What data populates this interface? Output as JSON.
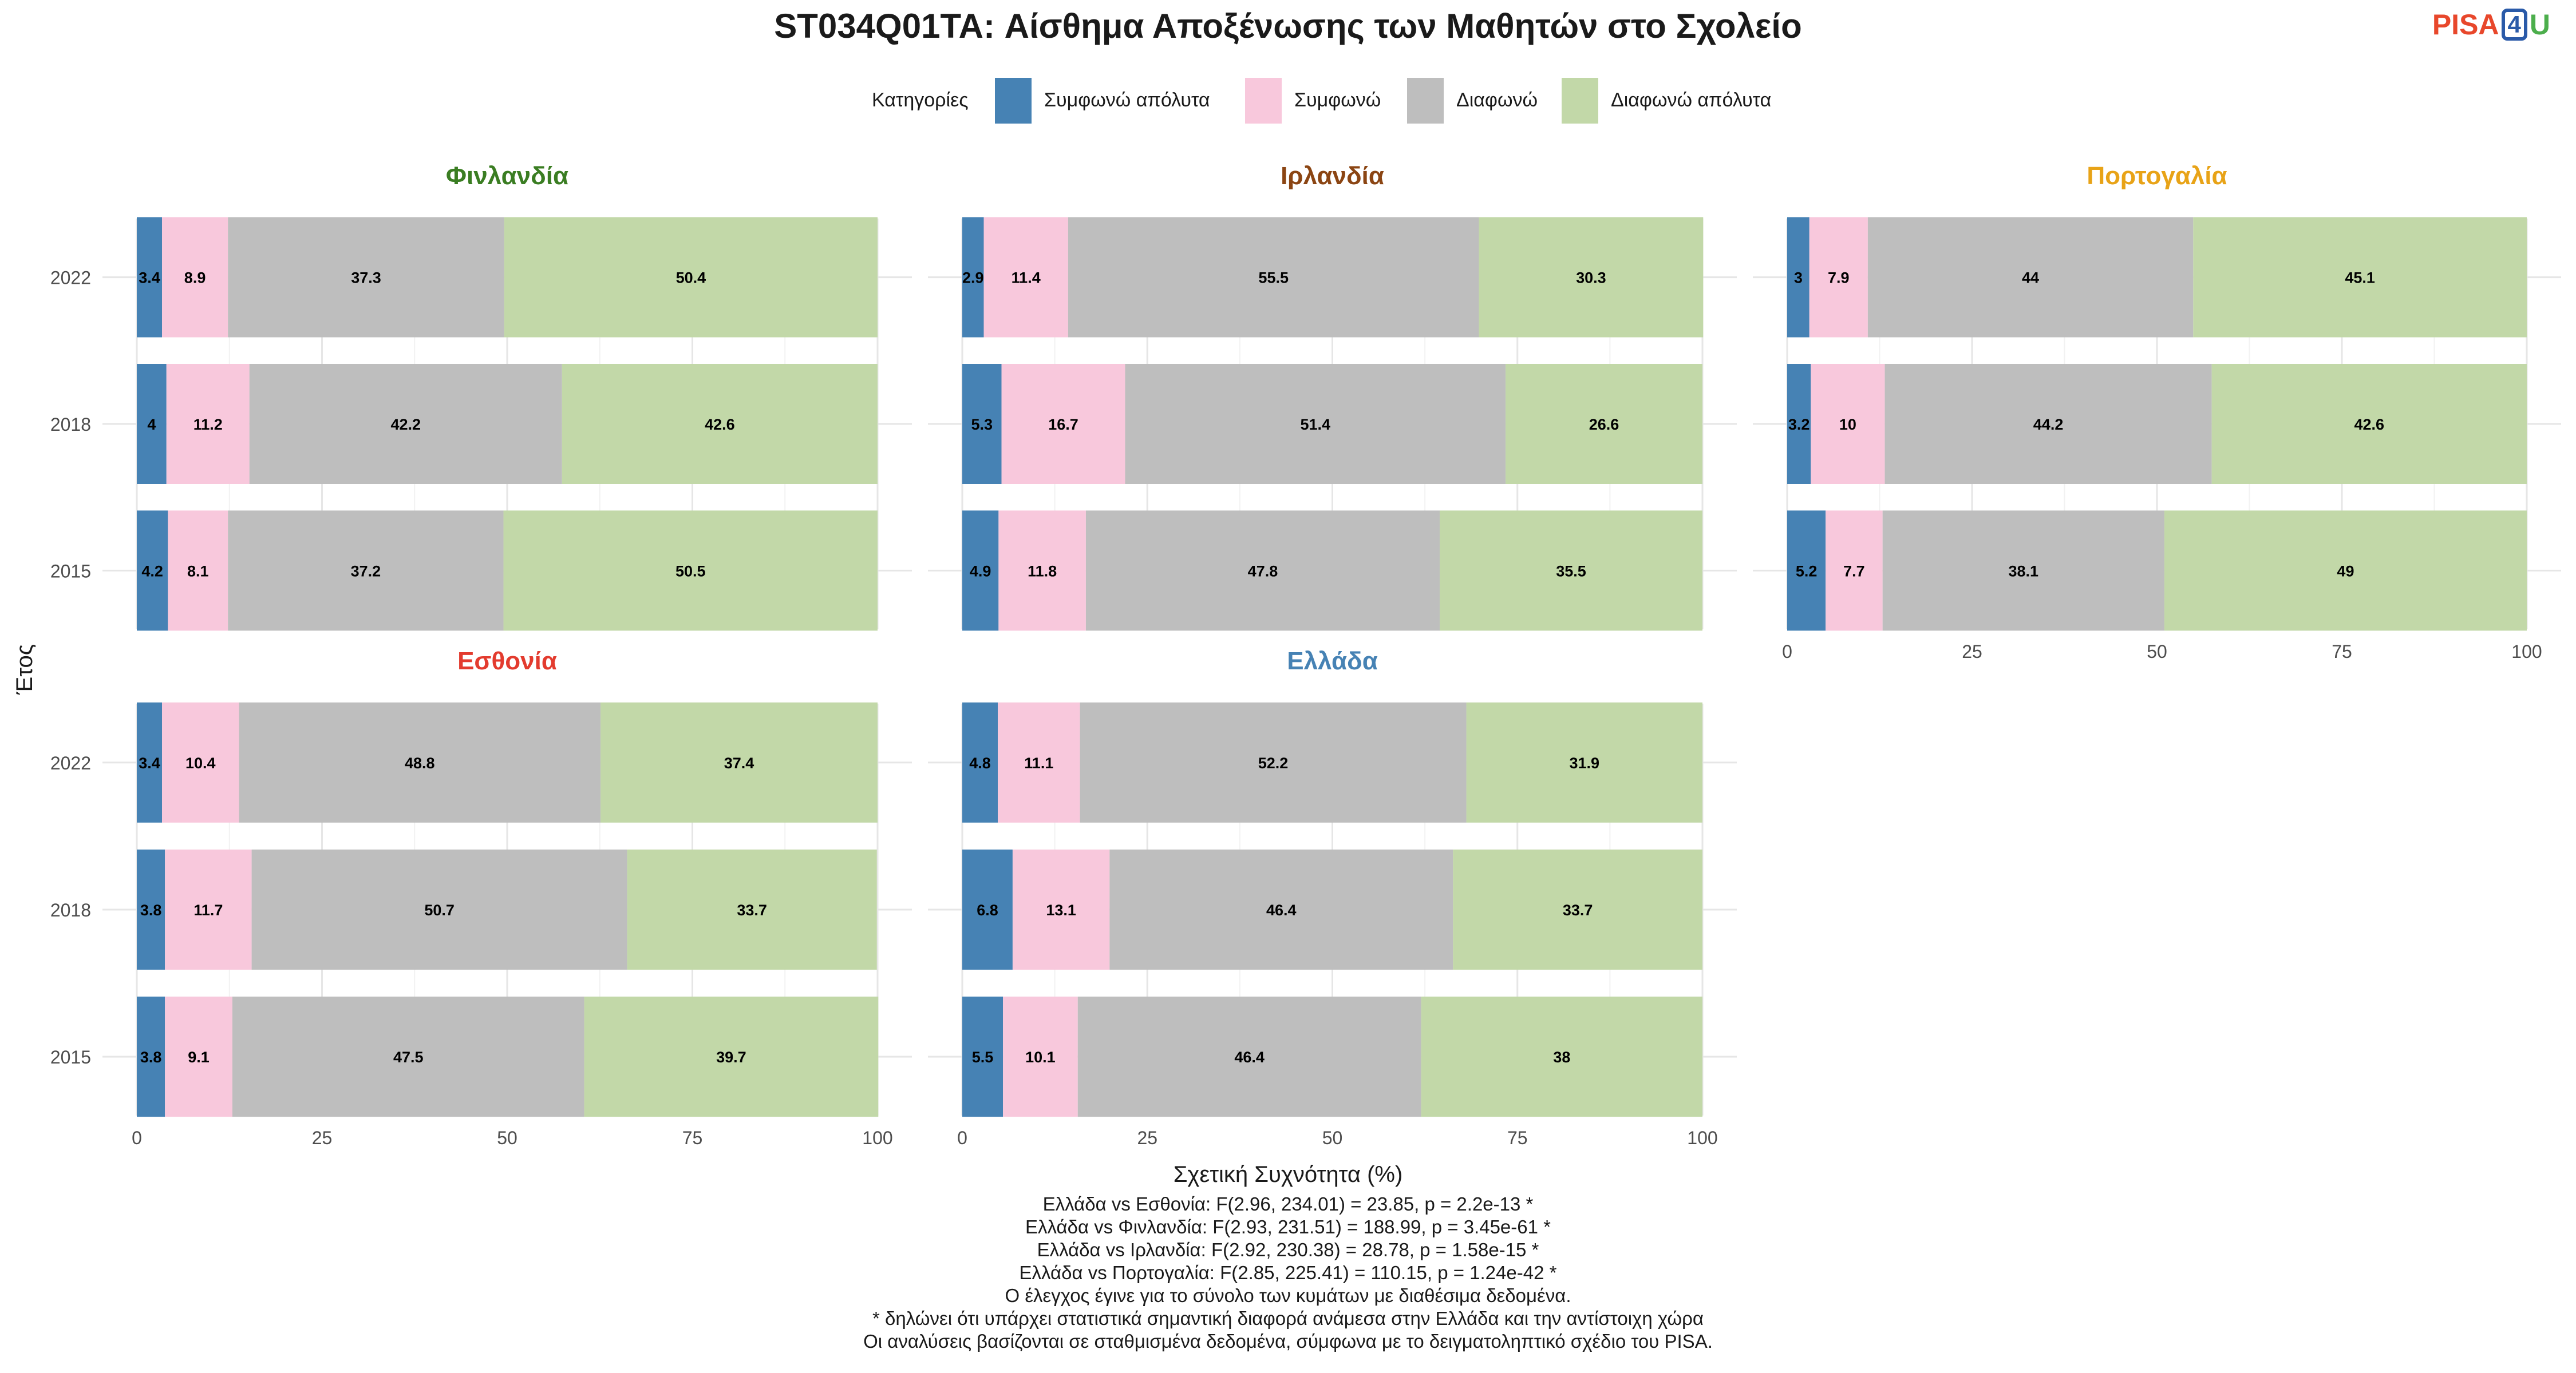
{
  "title": "ST034Q01TA: Αίσθημα Αποξένωσης των Μαθητών στο Σχολείο",
  "logo": {
    "pisa": "PISA",
    "four": "4",
    "u": "U"
  },
  "legend": {
    "title": "Κατηγορίες",
    "items": [
      {
        "label": "Συμφωνώ απόλυτα",
        "color": "#4682B4"
      },
      {
        "label": "Συμφωνώ",
        "color": "#F8C8DC"
      },
      {
        "label": "Διαφωνώ",
        "color": "#BEBEBE"
      },
      {
        "label": "Διαφωνώ απόλυτα",
        "color": "#C2D8A8"
      }
    ]
  },
  "axes": {
    "xlabel": "Σχετική Συχνότητα (%)",
    "ylabel": "Έτος"
  },
  "chart_data": {
    "type": "bar",
    "orientation": "horizontal",
    "stacked": true,
    "xlim": [
      0,
      100
    ],
    "xticks": [
      0,
      25,
      50,
      75,
      100
    ],
    "categories": [
      "2022",
      "2018",
      "2015"
    ],
    "series_names": [
      "Συμφωνώ απόλυτα",
      "Συμφωνώ",
      "Διαφωνώ",
      "Διαφωνώ απόλυτα"
    ],
    "panels": [
      {
        "name": "Φινλανδία",
        "color": "#3A7D22",
        "values": {
          "2022": [
            3.4,
            8.9,
            37.3,
            50.4
          ],
          "2018": [
            4,
            11.2,
            42.2,
            42.6
          ],
          "2015": [
            4.2,
            8.1,
            37.2,
            50.5
          ]
        }
      },
      {
        "name": "Ιρλανδία",
        "color": "#8B4513",
        "values": {
          "2022": [
            2.9,
            11.4,
            55.5,
            30.3
          ],
          "2018": [
            5.3,
            16.7,
            51.4,
            26.6
          ],
          "2015": [
            4.9,
            11.8,
            47.8,
            35.5
          ]
        }
      },
      {
        "name": "Πορτογαλία",
        "color": "#E8A317",
        "values": {
          "2022": [
            3,
            7.9,
            44,
            45.1
          ],
          "2018": [
            3.2,
            10,
            44.2,
            42.6
          ],
          "2015": [
            5.2,
            7.7,
            38.1,
            49
          ]
        }
      },
      {
        "name": "Εσθονία",
        "color": "#E33B2E",
        "values": {
          "2022": [
            3.4,
            10.4,
            48.8,
            37.4
          ],
          "2018": [
            3.8,
            11.7,
            50.7,
            33.7
          ],
          "2015": [
            3.8,
            9.1,
            47.5,
            39.7
          ]
        }
      },
      {
        "name": "Ελλάδα",
        "color": "#4682B4",
        "values": {
          "2022": [
            4.8,
            11.1,
            52.2,
            31.9
          ],
          "2018": [
            6.8,
            13.1,
            46.4,
            33.7
          ],
          "2015": [
            5.5,
            10.1,
            46.4,
            38
          ]
        }
      }
    ]
  },
  "notes": [
    "Ελλάδα vs Εσθονία: F(2.96, 234.01) = 23.85, p = 2.2e-13 *",
    "Ελλάδα vs Φινλανδία: F(2.93, 231.51) = 188.99, p = 3.45e-61 *",
    "Ελλάδα vs Ιρλανδία: F(2.92, 230.38) = 28.78, p = 1.58e-15 *",
    "Ελλάδα vs Πορτογαλία: F(2.85, 225.41) = 110.15, p = 1.24e-42 *",
    "Ο έλεγχος έγινε για το σύνολο των κυμάτων με διαθέσιμα δεδομένα.",
    "* δηλώνει ότι υπάρχει στατιστικά σημαντική διαφορά ανάμεσα στην Ελλάδα και την αντίστοιχη χώρα",
    "Οι αναλύσεις βασίζονται σε σταθμισμένα δεδομένα, σύμφωνα με το δειγματοληπτικό σχέδιο του PISA."
  ]
}
